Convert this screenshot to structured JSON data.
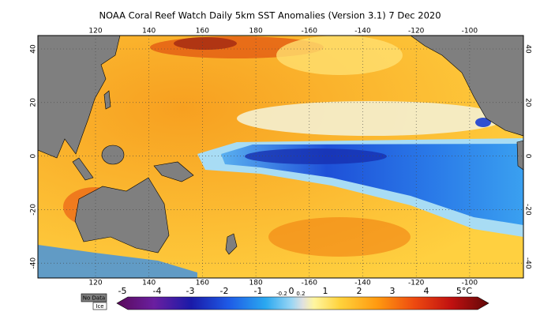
{
  "title": "NOAA Coral Reef Watch Daily 5km SST Anomalies (Version 3.1)   7 Dec 2020",
  "lon_labels": [
    "120",
    "140",
    "160",
    "180",
    "-160",
    "-140",
    "-120",
    "-100"
  ],
  "lat_labels": [
    "40",
    "20",
    "0",
    "-20",
    "-40"
  ],
  "legend": {
    "no_data": "No Data",
    "ice": "Ice"
  },
  "colorbar_labels": [
    "-5",
    "-4",
    "-3",
    "-2",
    "-1",
    "-0.2",
    "0",
    "0.2",
    "1",
    "2",
    "3",
    "4",
    "5°C"
  ]
}
